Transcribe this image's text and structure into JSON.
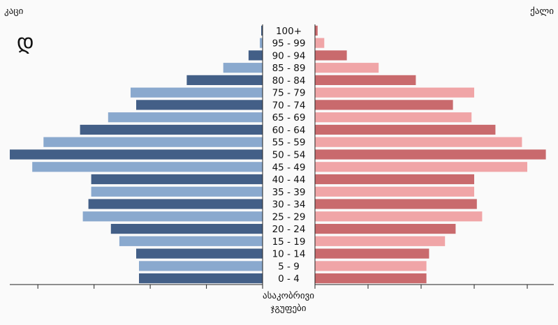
{
  "chart_data": {
    "type": "bar",
    "orientation": "horizontal-population-pyramid",
    "panel_mark": "დ",
    "left_label": "კაცი",
    "right_label": "ქალი",
    "center_axis_label_line1": "ასაკობრივი",
    "center_axis_label_line2": "ჯგუფები",
    "categories": [
      "0 - 4",
      "5 - 9",
      "10 - 14",
      "15 - 19",
      "20 - 24",
      "25 - 29",
      "30 - 34",
      "35 - 39",
      "40 - 44",
      "45 - 49",
      "50 - 54",
      "55 - 59",
      "60 - 64",
      "65 - 69",
      "70 - 74",
      "75 - 79",
      "80 - 84",
      "85 - 89",
      "90 - 94",
      "95 - 99",
      "100+"
    ],
    "xlim": [
      0,
      9
    ],
    "series": [
      {
        "name": "კაცი",
        "side": "left",
        "values": [
          4.4,
          4.4,
          4.5,
          5.1,
          5.4,
          6.4,
          6.2,
          6.1,
          6.1,
          8.2,
          9.0,
          7.8,
          6.5,
          5.5,
          4.5,
          4.7,
          2.7,
          1.4,
          0.5,
          0.1,
          0.05
        ]
      },
      {
        "name": "ქალი",
        "side": "right",
        "values": [
          4.2,
          4.2,
          4.3,
          4.9,
          5.3,
          6.3,
          6.1,
          6.0,
          6.0,
          8.0,
          8.7,
          7.8,
          6.8,
          5.9,
          5.2,
          6.0,
          3.8,
          2.4,
          1.2,
          0.35,
          0.1
        ]
      }
    ],
    "colors": {
      "male_dark": "#435f87",
      "male_light": "#8aa9ce",
      "female_dark": "#c96a6d",
      "female_light": "#f0a5a7",
      "axis": "#222222",
      "background": "#fafafa"
    },
    "grid": false,
    "legend": "none"
  }
}
